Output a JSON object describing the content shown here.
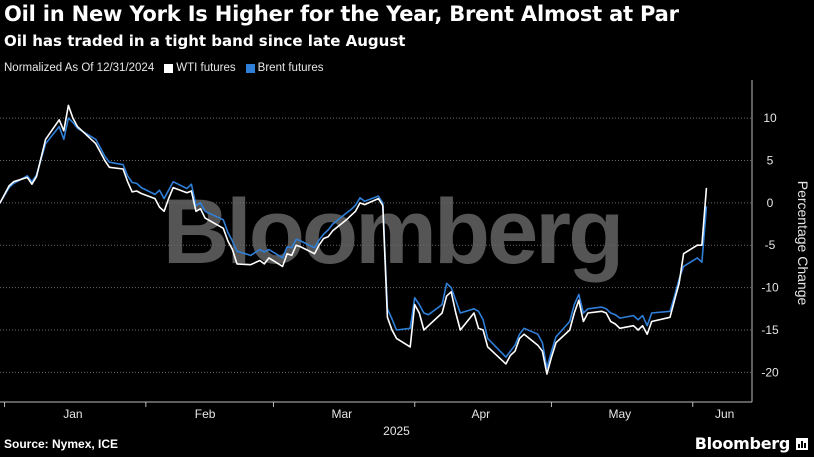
{
  "title": "Oil in New York Is Higher for the Year, Brent Almost at Par",
  "subtitle": "Oil has traded in a tight band since late August",
  "legend": {
    "note": "Normalized As Of 12/31/2024",
    "wti_label": "WTI futures",
    "brent_label": "Brent futures"
  },
  "colors": {
    "wti": "#ffffff",
    "brent": "#2f7fd8",
    "background": "#000000"
  },
  "watermark": "Bloomberg",
  "source": "Source: Nymex, ICE",
  "brand": "Bloomberg",
  "chart_data": {
    "type": "line",
    "x_label": "2025",
    "x_ticks": [
      "Jan",
      "Feb",
      "Mar",
      "Apr",
      "May",
      "Jun"
    ],
    "y_label": "Percentage Change",
    "y_ticks": [
      10,
      5,
      0,
      -5,
      -10,
      -15,
      -20
    ],
    "ylim": [
      -23.5,
      14.5
    ],
    "y_axis_side": "right",
    "grid": "horizontal dotted",
    "x_dates": [
      "2024-12-31",
      "2025-01-02",
      "2025-01-03",
      "2025-01-06",
      "2025-01-07",
      "2025-01-08",
      "2025-01-10",
      "2025-01-13",
      "2025-01-14",
      "2025-01-15",
      "2025-01-16",
      "2025-01-17",
      "2025-01-21",
      "2025-01-22",
      "2025-01-23",
      "2025-01-24",
      "2025-01-27",
      "2025-01-28",
      "2025-01-29",
      "2025-01-30",
      "2025-01-31",
      "2025-02-03",
      "2025-02-04",
      "2025-02-05",
      "2025-02-06",
      "2025-02-07",
      "2025-02-10",
      "2025-02-11",
      "2025-02-12",
      "2025-02-13",
      "2025-02-14",
      "2025-02-18",
      "2025-02-19",
      "2025-02-20",
      "2025-02-21",
      "2025-02-24",
      "2025-02-26",
      "2025-02-27",
      "2025-02-28",
      "2025-03-03",
      "2025-03-04",
      "2025-03-05",
      "2025-03-06",
      "2025-03-07",
      "2025-03-10",
      "2025-03-11",
      "2025-03-12",
      "2025-03-13",
      "2025-03-14",
      "2025-03-17",
      "2025-03-18",
      "2025-03-19",
      "2025-03-20",
      "2025-03-21",
      "2025-03-24",
      "2025-03-25",
      "2025-03-26",
      "2025-03-27",
      "2025-03-28",
      "2025-03-31",
      "2025-04-01",
      "2025-04-02",
      "2025-04-03",
      "2025-04-04",
      "2025-04-07",
      "2025-04-08",
      "2025-04-09",
      "2025-04-10",
      "2025-04-11",
      "2025-04-14",
      "2025-04-15",
      "2025-04-16",
      "2025-04-17",
      "2025-04-21",
      "2025-04-22",
      "2025-04-23",
      "2025-04-24",
      "2025-04-25",
      "2025-04-28",
      "2025-04-29",
      "2025-04-30",
      "2025-05-01",
      "2025-05-02",
      "2025-05-05",
      "2025-05-06",
      "2025-05-07",
      "2025-05-08",
      "2025-05-09",
      "2025-05-12",
      "2025-05-13",
      "2025-05-14",
      "2025-05-15",
      "2025-05-16",
      "2025-05-19",
      "2025-05-20",
      "2025-05-21",
      "2025-05-22",
      "2025-05-23",
      "2025-05-27",
      "2025-05-28",
      "2025-05-29",
      "2025-05-30",
      "2025-06-02",
      "2025-06-03",
      "2025-06-04"
    ],
    "x_range": [
      "2024-12-31",
      "2025-06-14"
    ],
    "series": [
      {
        "name": "WTI futures",
        "values": [
          0,
          2,
          2.5,
          3,
          2.2,
          3.1,
          7.5,
          9.8,
          8.5,
          11.5,
          10,
          9,
          7,
          6,
          5,
          4.2,
          4,
          2.5,
          1.3,
          1.4,
          1.1,
          0.5,
          -0.5,
          -1,
          0.5,
          1.8,
          1.2,
          1.4,
          -1,
          -0.7,
          -1.8,
          -3,
          -4.5,
          -5.5,
          -7.2,
          -7.3,
          -6.8,
          -7.2,
          -6.5,
          -7.5,
          -6,
          -6.2,
          -5,
          -5.2,
          -6,
          -5,
          -4.2,
          -4,
          -3.3,
          -2,
          -1.5,
          -1,
          0,
          -0.2,
          0.5,
          -0.3,
          -13.5,
          -15,
          -16,
          -17,
          -12,
          -13,
          -15,
          -14.5,
          -13,
          -11,
          -10.5,
          -13,
          -15,
          -13,
          -14.8,
          -15,
          -17,
          -19,
          -18,
          -17.5,
          -16,
          -15.5,
          -16.8,
          -17.5,
          -20.2,
          -18.2,
          -16.5,
          -15,
          -13,
          -11.5,
          -14,
          -13,
          -12.8,
          -13,
          -14,
          -14.3,
          -14.8,
          -14.5,
          -15,
          -14.5,
          -15.5,
          -14,
          -13.5,
          -11.5,
          -9.5,
          -6,
          -5,
          -5,
          1.7
        ]
      },
      {
        "name": "Brent futures",
        "values": [
          0,
          1.8,
          2.3,
          3.2,
          2.5,
          3.3,
          7,
          9,
          7.5,
          10,
          9.5,
          8.8,
          7.5,
          6.5,
          5.5,
          4.8,
          4.5,
          3.2,
          2.4,
          2.3,
          1.8,
          1,
          1.5,
          0.5,
          1.5,
          2.5,
          1.7,
          2.2,
          -0.3,
          0,
          -1,
          -2,
          -3.5,
          -4.5,
          -5.7,
          -6.2,
          -5.5,
          -5.8,
          -5.5,
          -6.5,
          -5.2,
          -5.3,
          -4.3,
          -4.5,
          -5.3,
          -4.4,
          -3.7,
          -3.2,
          -2.5,
          -1.2,
          -0.8,
          -0.3,
          0.6,
          0.2,
          0.8,
          0,
          -12.5,
          -13.7,
          -15,
          -14.8,
          -11.2,
          -12,
          -13,
          -13.2,
          -12,
          -9.5,
          -10,
          -11.5,
          -13,
          -12.5,
          -12.8,
          -13.8,
          -16,
          -18.2,
          -17.5,
          -16.8,
          -15.5,
          -14.8,
          -15.5,
          -16.5,
          -19.5,
          -17.5,
          -15.8,
          -14,
          -12,
          -10.8,
          -13,
          -12.5,
          -12.3,
          -12.5,
          -13,
          -13.2,
          -13.6,
          -13.3,
          -13.8,
          -13.3,
          -14.5,
          -13,
          -12.8,
          -11,
          -9,
          -7.5,
          -6.5,
          -7,
          -0.5
        ]
      }
    ]
  }
}
